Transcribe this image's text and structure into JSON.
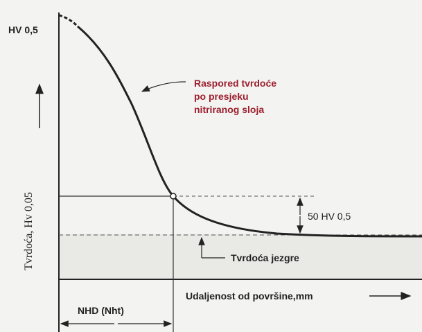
{
  "diagram": {
    "y_top_label": "HV 0,5",
    "y_axis_label": "Tvrdoća, Hv 0,05",
    "curve_label": [
      "Raspored tvrdoće",
      "po presjeku",
      "nitriranog sloja"
    ],
    "difference_label": "50 HV 0,5",
    "core_label": "Tvrdoća jezgre",
    "x_axis_label": "Udaljenost od površine,mm",
    "depth_label": "NHD (Nht)"
  }
}
